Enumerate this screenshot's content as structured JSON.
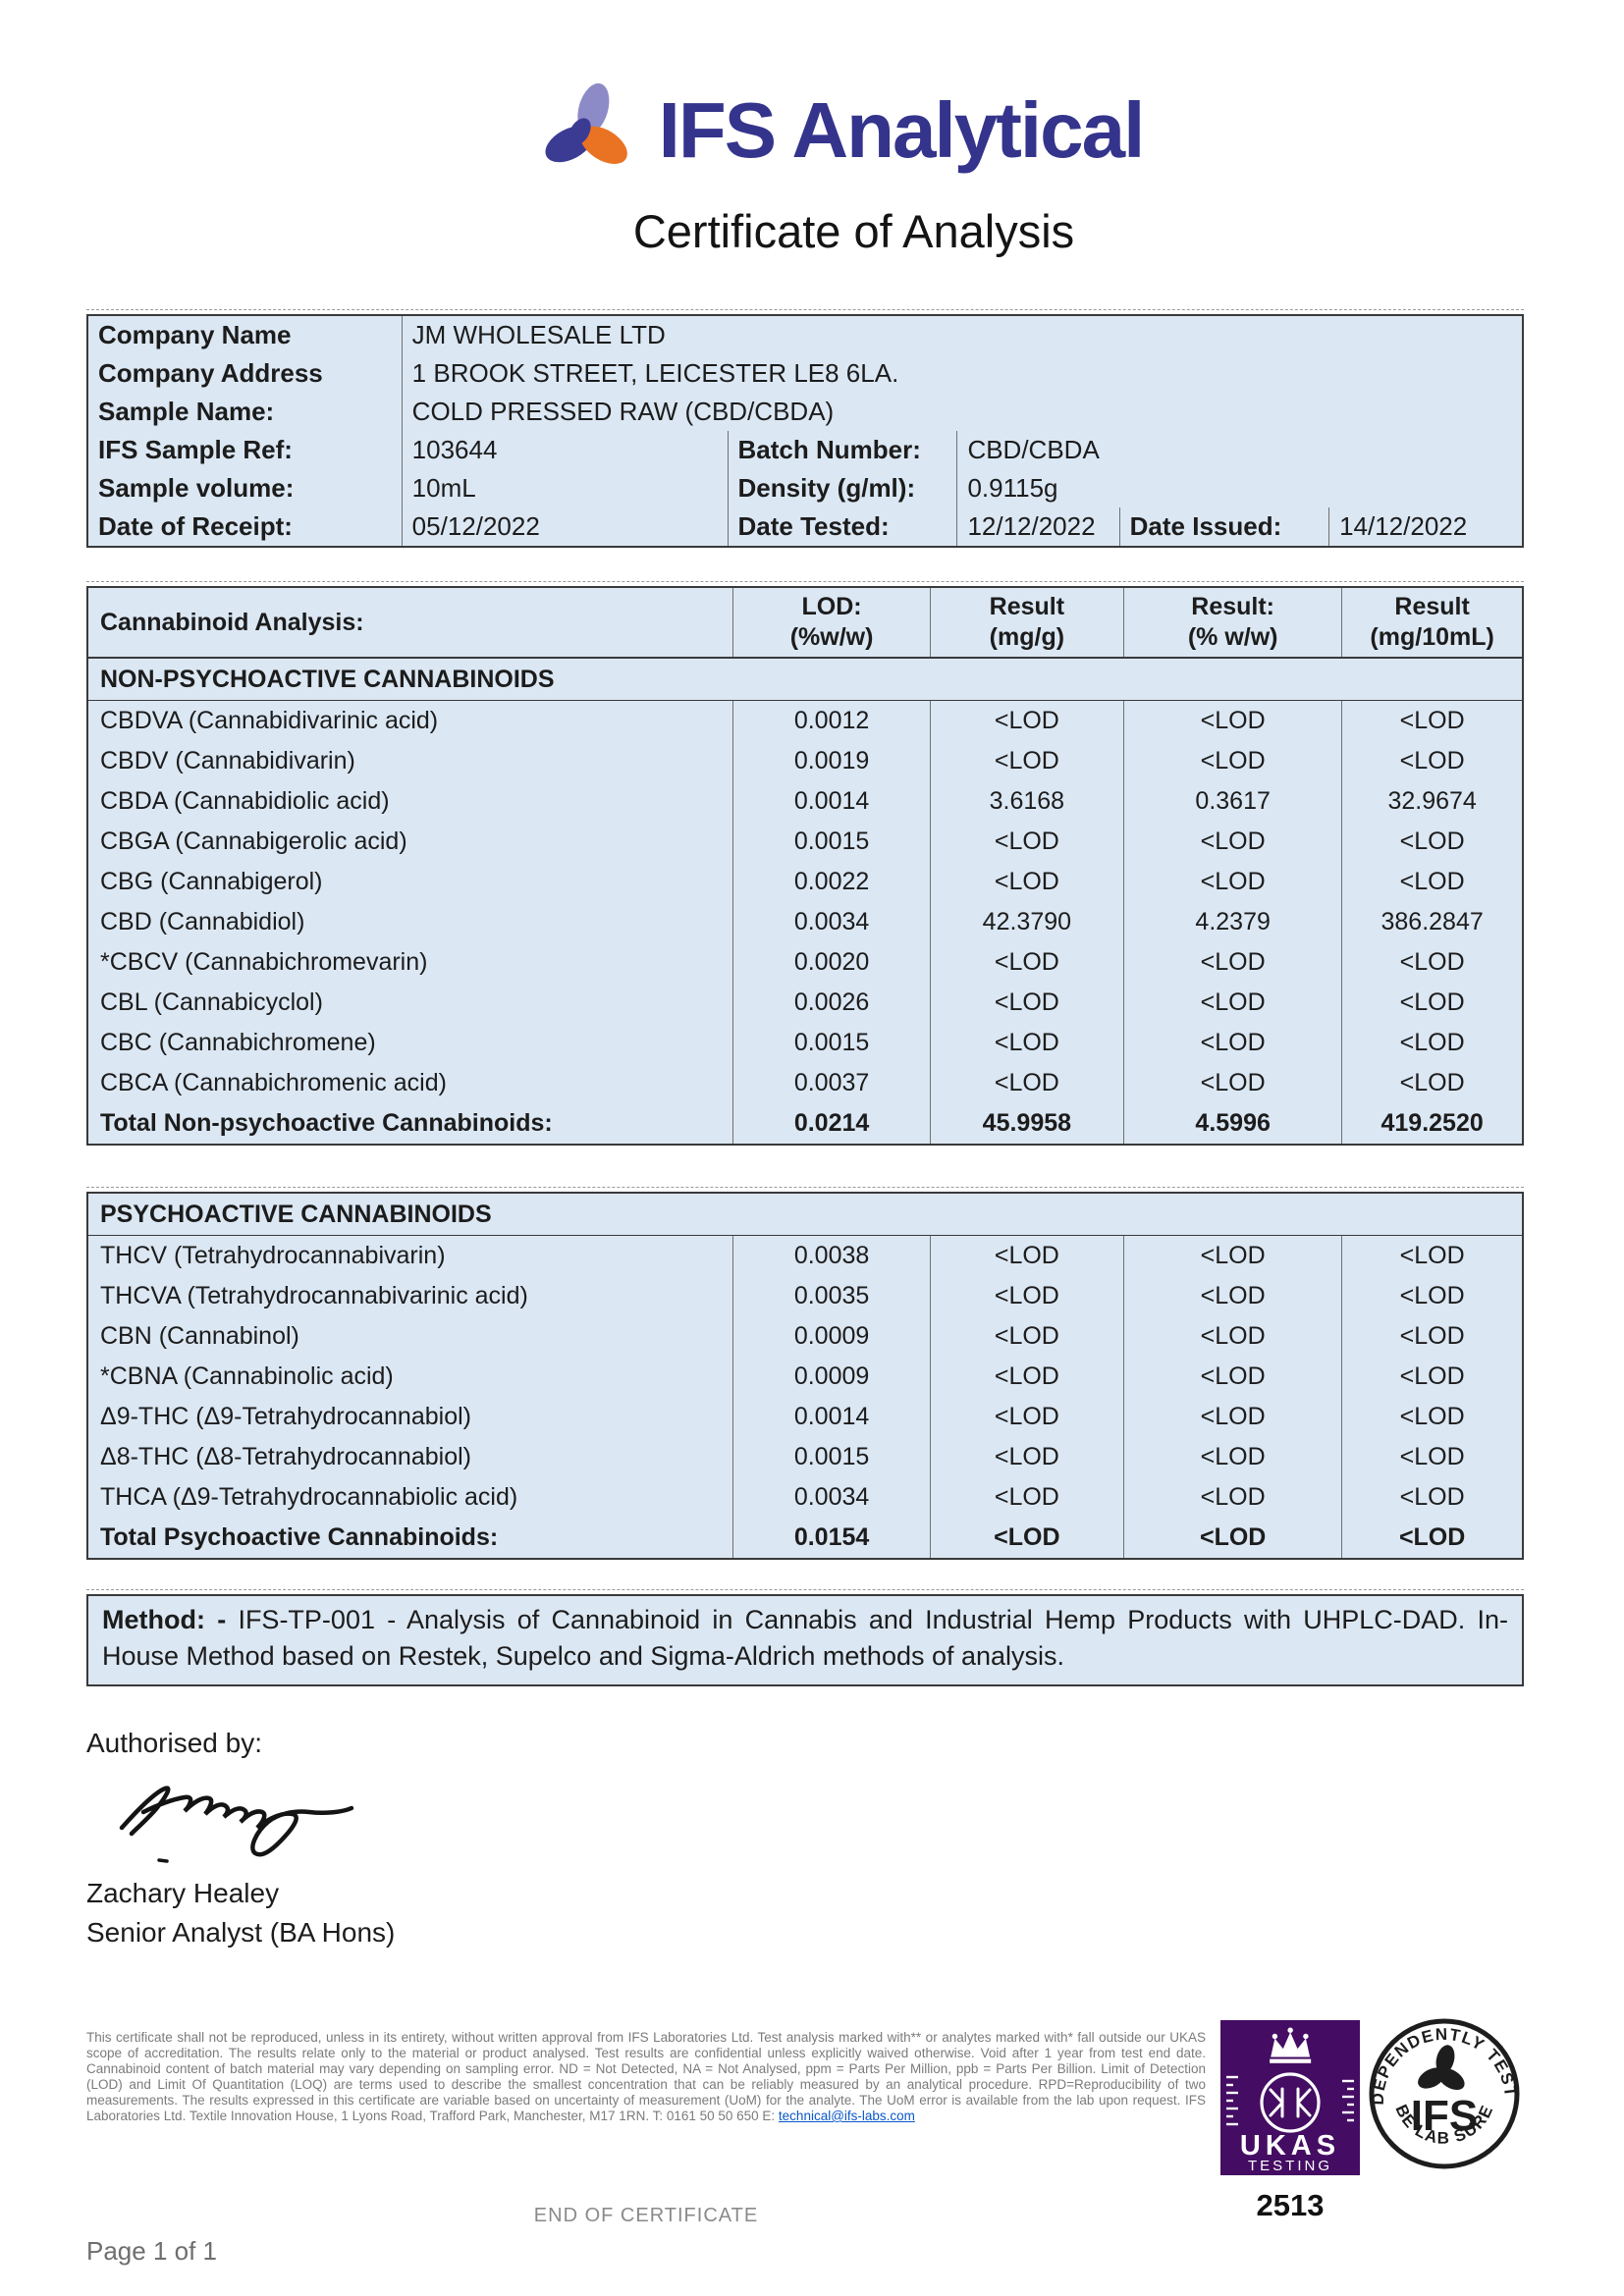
{
  "brand": {
    "name": "IFS Analytical",
    "colors": {
      "indigo": "#34348c",
      "lilac": "#8d8bc7",
      "orange": "#e97322",
      "table_blue": "#dbe7f3",
      "ukas_purple": "#440d63"
    }
  },
  "title": "Certificate of Analysis",
  "info": {
    "company_name_label": "Company Name",
    "company_name": "JM WHOLESALE LTD",
    "company_address_label": "Company Address",
    "company_address": "1 BROOK STREET, LEICESTER LE8 6LA.",
    "sample_name_label": "Sample Name:",
    "sample_name": "COLD PRESSED RAW (CBD/CBDA)",
    "sample_ref_label": "IFS Sample Ref:",
    "sample_ref": "103644",
    "batch_label": "Batch Number:",
    "batch": "CBD/CBDA",
    "volume_label": "Sample volume:",
    "volume": "10mL",
    "density_label": "Density (g/ml):",
    "density": "0.9115g",
    "receipt_label": "Date of Receipt:",
    "receipt": "05/12/2022",
    "tested_label": "Date Tested:",
    "tested": "12/12/2022",
    "issued_label": "Date Issued:",
    "issued": "14/12/2022"
  },
  "analysis": {
    "title": "Cannabinoid Analysis:",
    "columns": [
      {
        "line1": "LOD:",
        "line2": "(%w/w)"
      },
      {
        "line1": "Result",
        "line2": "(mg/g)"
      },
      {
        "line1": "Result:",
        "line2": "(% w/w)"
      },
      {
        "line1": "Result",
        "line2": "(mg/10mL)"
      }
    ],
    "non_psychoactive": {
      "section": "NON-PSYCHOACTIVE CANNABINOIDS",
      "rows": [
        {
          "name": "CBDVA (Cannabidivarinic acid)",
          "lod": "0.0012",
          "mgg": "<LOD",
          "pww": "<LOD",
          "mg10": "<LOD"
        },
        {
          "name": "CBDV (Cannabidivarin)",
          "lod": "0.0019",
          "mgg": "<LOD",
          "pww": "<LOD",
          "mg10": "<LOD"
        },
        {
          "name": "CBDA (Cannabidiolic acid)",
          "lod": "0.0014",
          "mgg": "3.6168",
          "pww": "0.3617",
          "mg10": "32.9674"
        },
        {
          "name": "CBGA (Cannabigerolic acid)",
          "lod": "0.0015",
          "mgg": "<LOD",
          "pww": "<LOD",
          "mg10": "<LOD"
        },
        {
          "name": "CBG (Cannabigerol)",
          "lod": "0.0022",
          "mgg": "<LOD",
          "pww": "<LOD",
          "mg10": "<LOD"
        },
        {
          "name": "CBD (Cannabidiol)",
          "lod": "0.0034",
          "mgg": "42.3790",
          "pww": "4.2379",
          "mg10": "386.2847"
        },
        {
          "name": "*CBCV (Cannabichromevarin)",
          "lod": "0.0020",
          "mgg": "<LOD",
          "pww": "<LOD",
          "mg10": "<LOD"
        },
        {
          "name": "CBL (Cannabicyclol)",
          "lod": "0.0026",
          "mgg": "<LOD",
          "pww": "<LOD",
          "mg10": "<LOD"
        },
        {
          "name": "CBC (Cannabichromene)",
          "lod": "0.0015",
          "mgg": "<LOD",
          "pww": "<LOD",
          "mg10": "<LOD"
        },
        {
          "name": "CBCA (Cannabichromenic acid)",
          "lod": "0.0037",
          "mgg": "<LOD",
          "pww": "<LOD",
          "mg10": "<LOD"
        }
      ],
      "total": {
        "name": "Total Non-psychoactive Cannabinoids:",
        "lod": "0.0214",
        "mgg": "45.9958",
        "pww": "4.5996",
        "mg10": "419.2520"
      }
    },
    "psychoactive": {
      "section": "PSYCHOACTIVE CANNABINOIDS",
      "rows": [
        {
          "name": "THCV (Tetrahydrocannabivarin)",
          "lod": "0.0038",
          "mgg": "<LOD",
          "pww": "<LOD",
          "mg10": "<LOD"
        },
        {
          "name": "THCVA (Tetrahydrocannabivarinic acid)",
          "lod": "0.0035",
          "mgg": "<LOD",
          "pww": "<LOD",
          "mg10": "<LOD"
        },
        {
          "name": "CBN (Cannabinol)",
          "lod": "0.0009",
          "mgg": "<LOD",
          "pww": "<LOD",
          "mg10": "<LOD"
        },
        {
          "name": "*CBNA (Cannabinolic acid)",
          "lod": "0.0009",
          "mgg": "<LOD",
          "pww": "<LOD",
          "mg10": "<LOD"
        },
        {
          "name": "Δ9-THC (Δ9-Tetrahydrocannabiol)",
          "lod": "0.0014",
          "mgg": "<LOD",
          "pww": "<LOD",
          "mg10": "<LOD"
        },
        {
          "name": "Δ8-THC (Δ8-Tetrahydrocannabiol)",
          "lod": "0.0015",
          "mgg": "<LOD",
          "pww": "<LOD",
          "mg10": "<LOD"
        },
        {
          "name": "THCA (Δ9-Tetrahydrocannabiolic acid)",
          "lod": "0.0034",
          "mgg": "<LOD",
          "pww": "<LOD",
          "mg10": "<LOD"
        }
      ],
      "total": {
        "name": "Total Psychoactive Cannabinoids:",
        "lod": "0.0154",
        "mgg": "<LOD",
        "pww": "<LOD",
        "mg10": "<LOD"
      }
    }
  },
  "method": {
    "label": "Method: -",
    "text": "IFS-TP-001 - Analysis of Cannabinoid in Cannabis and Industrial Hemp Products with UHPLC-DAD. In-House Method based on Restek, Supelco and Sigma-Aldrich methods of analysis."
  },
  "signature": {
    "authorised_by": "Authorised by:",
    "name": "Zachary Healey",
    "role": "Senior Analyst (BA Hons)"
  },
  "footer": {
    "disclaimer": "This certificate shall not be reproduced, unless in its entirety, without written approval from IFS Laboratories Ltd. Test analysis marked with** or analytes marked with* fall outside our UKAS scope of accreditation. The results relate only to the material or product analysed. Test results are confidential unless explicitly waived otherwise. Void after 1 year from test end date. Cannabinoid content of batch material may vary depending on sampling error. ND = Not Detected, NA = Not Analysed, ppm = Parts Per Million, ppb = Parts Per Billion. Limit of Detection (LOD) and Limit Of Quantitation (LOQ) are terms used to describe the smallest concentration that can be reliably measured by an analytical procedure. RPD=Reproducibility of two measurements. The results expressed in this certificate are variable based on uncertainty of measurement (UoM) for the analyte. The UoM error is available from the lab upon request. IFS Laboratories Ltd. Textile Innovation House, 1 Lyons Road, Trafford Park, Manchester, M17 1RN. T: 0161 50 50 650 E: ",
    "contact_email": "technical@ifs-labs.com",
    "end_of_certificate": "END OF CERTIFICATE",
    "page_number": "Page 1 of 1",
    "ukas": {
      "acronym": "UKAS",
      "label": "TESTING",
      "accreditation_number": "2513"
    },
    "stamp": {
      "arc_top": "INDEPENDENTLY TESTED",
      "center": "IFS",
      "arc_bottom": "BE LAB SURE"
    }
  }
}
